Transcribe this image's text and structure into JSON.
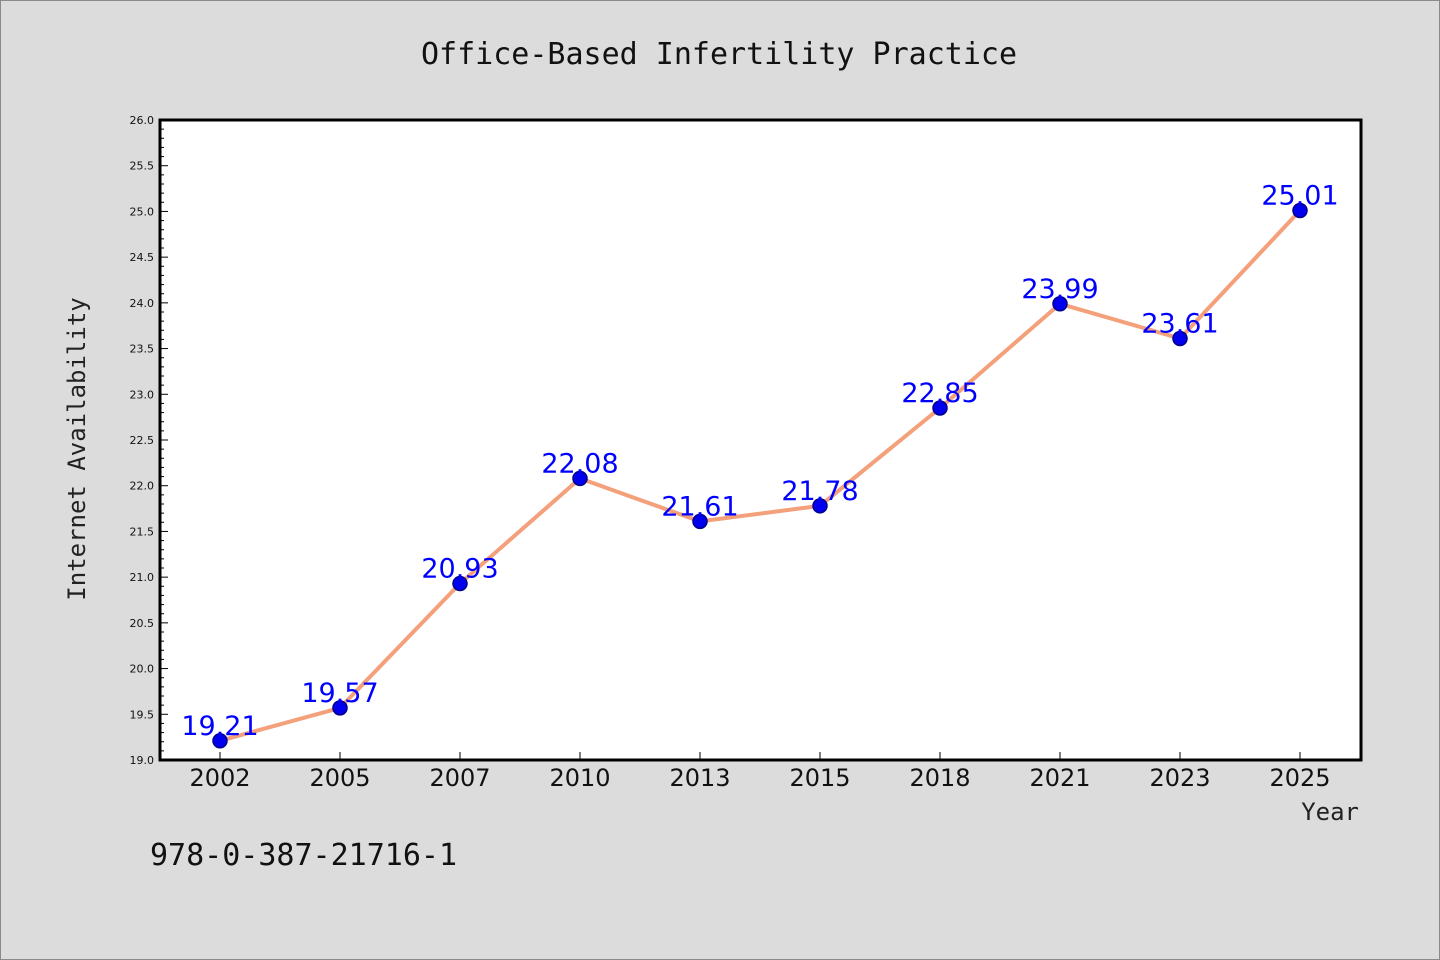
{
  "chart_data": {
    "type": "line",
    "title": "Office-Based Infertility Practice",
    "xlabel": "Year",
    "ylabel": "Internet Availability",
    "categories": [
      "2002",
      "2005",
      "2007",
      "2010",
      "2013",
      "2015",
      "2018",
      "2021",
      "2023",
      "2025"
    ],
    "series": [
      {
        "values": [
          19.21,
          19.57,
          20.93,
          22.08,
          21.61,
          21.78,
          22.85,
          23.99,
          23.61,
          25.01
        ],
        "labels": [
          "19.21",
          "19.57",
          "20.93",
          "22.08",
          "21.61",
          "21.78",
          "22.85",
          "23.99",
          "23.61",
          "25.01"
        ],
        "line_color": "#f4a07a",
        "marker_color": "#0000ee",
        "marker_edge": "#00008b"
      }
    ],
    "ylim": [
      19.0,
      26.0
    ],
    "yticks": [
      "19.0",
      "19.5",
      "20.0",
      "20.5",
      "21.0",
      "21.5",
      "22.0",
      "22.5",
      "23.0",
      "23.5",
      "24.0",
      "24.5",
      "25.0",
      "25.5",
      "26.0"
    ],
    "grid": false,
    "legend": "none"
  },
  "footer": {
    "code": "978-0-387-21716-1"
  },
  "colors": {
    "background": "#dcdcdc",
    "plot_background": "#ffffff",
    "label_color": "#0000ff"
  }
}
